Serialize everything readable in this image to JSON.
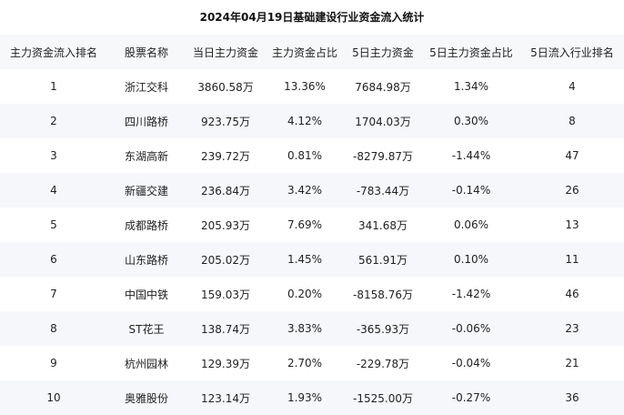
{
  "chart_data": {
    "type": "table",
    "title": "2024年04月19日基础建设行业资金流入统计",
    "columns": [
      "主力资金流入排名",
      "股票名称",
      "当日主力资金",
      "主力资金占比",
      "5日主力资金",
      "5日主力资金占比",
      "5日流入行业排名"
    ],
    "rows": [
      [
        "1",
        "浙江交科",
        "3860.58万",
        "13.36%",
        "7684.98万",
        "1.34%",
        "4"
      ],
      [
        "2",
        "四川路桥",
        "923.75万",
        "4.12%",
        "1704.03万",
        "0.30%",
        "8"
      ],
      [
        "3",
        "东湖高新",
        "239.72万",
        "0.81%",
        "-8279.87万",
        "-1.44%",
        "47"
      ],
      [
        "4",
        "新疆交建",
        "236.84万",
        "3.42%",
        "-783.44万",
        "-0.14%",
        "26"
      ],
      [
        "5",
        "成都路桥",
        "205.93万",
        "7.69%",
        "341.68万",
        "0.06%",
        "13"
      ],
      [
        "6",
        "山东路桥",
        "205.02万",
        "1.45%",
        "561.91万",
        "0.10%",
        "11"
      ],
      [
        "7",
        "中国中铁",
        "159.03万",
        "0.20%",
        "-8158.76万",
        "-1.42%",
        "46"
      ],
      [
        "8",
        "ST花王",
        "138.74万",
        "3.83%",
        "-365.93万",
        "-0.06%",
        "23"
      ],
      [
        "9",
        "杭州园林",
        "129.39万",
        "2.70%",
        "-229.78万",
        "-0.04%",
        "21"
      ],
      [
        "10",
        "奥雅股份",
        "123.14万",
        "1.93%",
        "-1525.00万",
        "-0.27%",
        "36"
      ]
    ]
  }
}
